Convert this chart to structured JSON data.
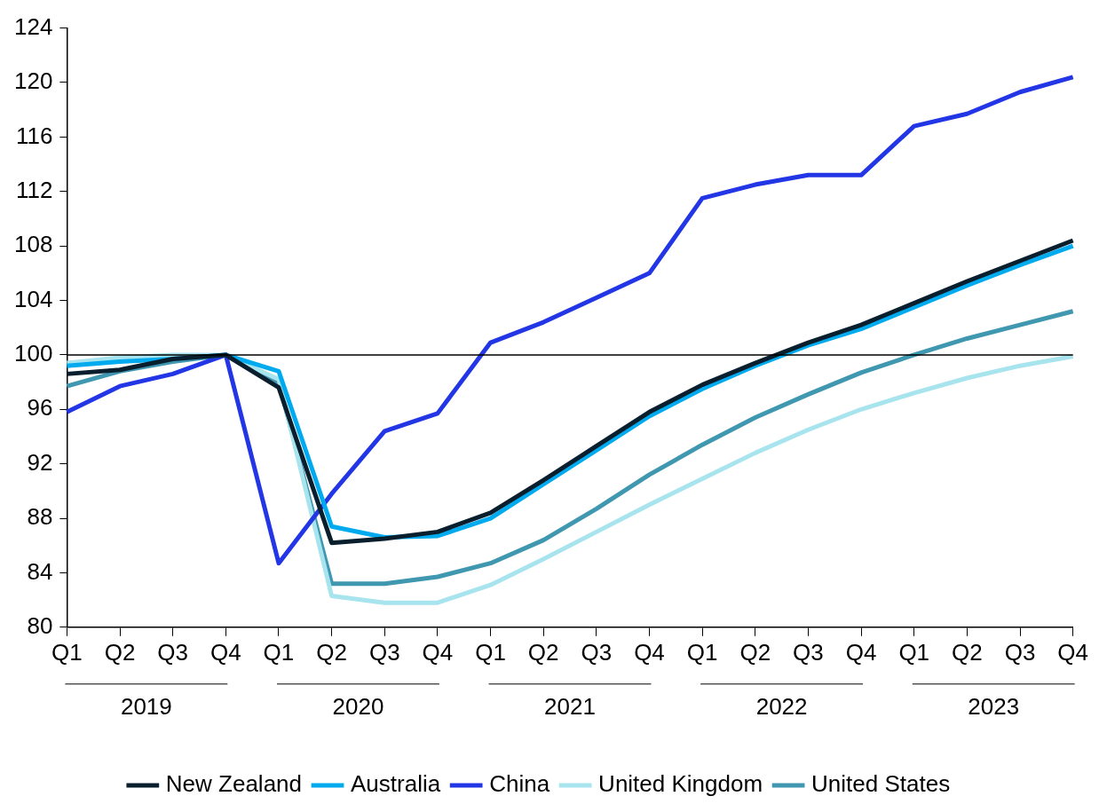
{
  "chart_data": {
    "type": "line",
    "categories": [
      "Q1",
      "Q2",
      "Q3",
      "Q4",
      "Q1",
      "Q2",
      "Q3",
      "Q4",
      "Q1",
      "Q2",
      "Q3",
      "Q4",
      "Q1",
      "Q2",
      "Q3",
      "Q4",
      "Q1",
      "Q2",
      "Q3",
      "Q4"
    ],
    "annotations": [
      "2019",
      "2020",
      "2021",
      "2022",
      "2023"
    ],
    "ylim": [
      80,
      124
    ],
    "yticks": [
      80,
      84,
      88,
      92,
      96,
      100,
      104,
      108,
      112,
      116,
      120,
      124
    ],
    "grid": false,
    "legend": "bottom",
    "marker": "none",
    "line_style": "solid",
    "ref_lines": [
      {
        "axis": "y",
        "value": 100,
        "color": "#000000"
      }
    ],
    "series": [
      {
        "name": "New Zealand",
        "color": "#0a1f2e",
        "values": [
          98.6,
          98.9,
          99.7,
          100,
          97.6,
          86.2,
          86.5,
          87.0,
          88.4,
          90.8,
          93.3,
          95.8,
          97.8,
          99.4,
          100.9,
          102.2,
          103.8,
          105.4,
          106.9,
          108.4
        ]
      },
      {
        "name": "Australia",
        "color": "#00aaee",
        "values": [
          99.2,
          99.5,
          99.7,
          100,
          98.8,
          87.4,
          86.6,
          86.7,
          88.0,
          90.5,
          93.0,
          95.5,
          97.5,
          99.2,
          100.7,
          101.9,
          103.5,
          105.1,
          106.6,
          108.0
        ]
      },
      {
        "name": "China",
        "color": "#2236e6",
        "values": [
          95.8,
          97.7,
          98.6,
          100,
          84.7,
          89.8,
          94.4,
          95.7,
          100.9,
          102.4,
          104.2,
          106.0,
          111.5,
          112.5,
          113.2,
          113.2,
          116.8,
          117.7,
          119.3,
          120.4
        ]
      },
      {
        "name": "United Kingdom",
        "color": "#a8e4ee",
        "values": [
          99.4,
          99.8,
          100,
          100,
          98.2,
          82.3,
          81.8,
          81.8,
          83.1,
          85.0,
          87.0,
          89.0,
          90.9,
          92.8,
          94.5,
          96.0,
          97.2,
          98.3,
          99.2,
          99.9
        ]
      },
      {
        "name": "United States",
        "color": "#3f97b0",
        "values": [
          97.7,
          98.8,
          99.5,
          100,
          98.0,
          83.2,
          83.2,
          83.7,
          84.7,
          86.4,
          88.7,
          91.2,
          93.4,
          95.4,
          97.1,
          98.7,
          100.0,
          101.2,
          102.2,
          103.2
        ]
      }
    ]
  }
}
